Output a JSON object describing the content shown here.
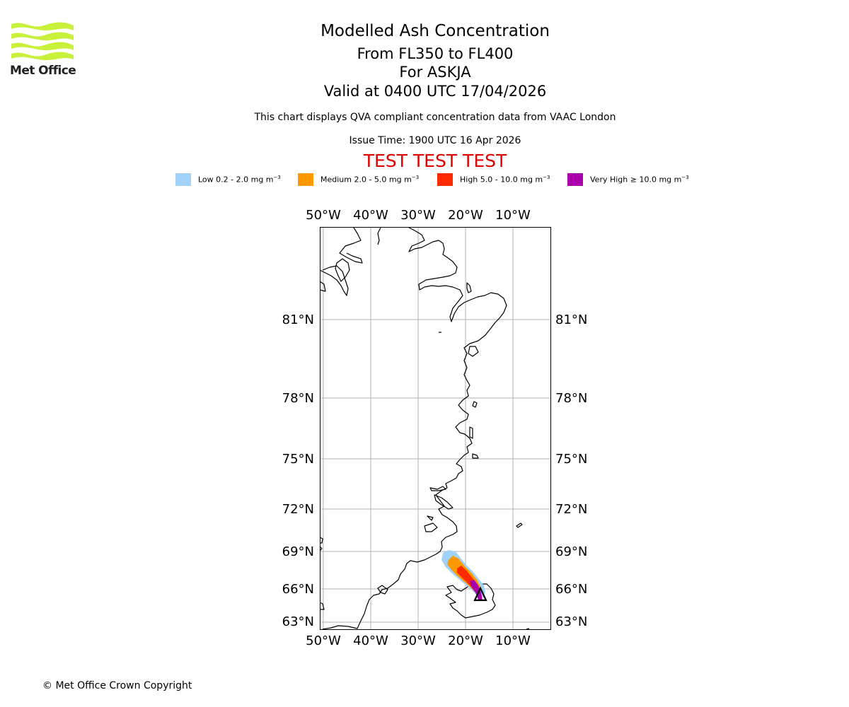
{
  "logo": {
    "text": "Met Office",
    "color": "#c8f13c"
  },
  "header": {
    "title": "Modelled Ash Concentration",
    "flight_levels": "From FL350 to FL400",
    "volcano": "For ASKJA",
    "valid_time": "Valid at 0400 UTC 17/04/2026",
    "description": "This chart displays QVA compliant concentration data from VAAC London",
    "issue_time": "Issue Time: 1900 UTC 16 Apr 2026",
    "test_banner": "TEST TEST TEST"
  },
  "legend": [
    {
      "label": "Low 0.2 - 2.0 mg m",
      "unit_exp": "−3",
      "color": "#a0d2fa"
    },
    {
      "label": "Medium 2.0 - 5.0 mg m",
      "unit_exp": "−3",
      "color": "#ff9900"
    },
    {
      "label": "High 5.0 - 10.0 mg m",
      "unit_exp": "−3",
      "color": "#ff2a00"
    },
    {
      "label": "Very High ≥ 10.0 mg m",
      "unit_exp": "−3",
      "color": "#aa00aa"
    }
  ],
  "map": {
    "longitude_ticks": [
      "50°W",
      "40°W",
      "30°W",
      "20°W",
      "10°W"
    ],
    "latitude_ticks": [
      "81°N",
      "78°N",
      "75°N",
      "72°N",
      "69°N",
      "66°N",
      "63°N"
    ],
    "volcano_marker": "triangle"
  },
  "footer": {
    "copyright": "© Met Office Crown Copyright"
  }
}
